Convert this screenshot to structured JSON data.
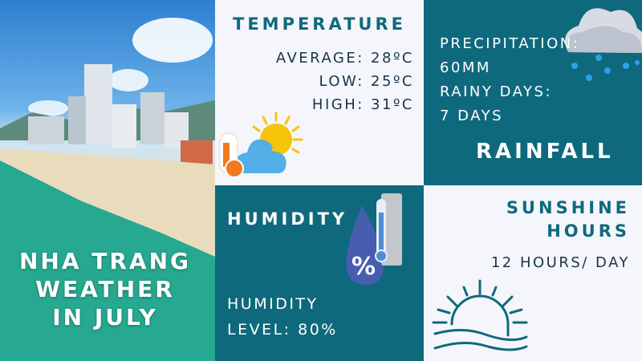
{
  "title": [
    "NHA TRANG",
    "WEATHER",
    "IN JULY"
  ],
  "temperature": {
    "heading": "TEMPERATURE",
    "lines": [
      "AVERAGE: 28ºC",
      "LOW: 25ºC",
      "HIGH: 31ºC"
    ]
  },
  "rainfall": {
    "heading": "RAINFALL",
    "lines": [
      "PRECIPITATION:",
      "60MM",
      "RAINY DAYS:",
      "7 DAYS"
    ]
  },
  "humidity": {
    "heading": "HUMIDITY",
    "lines": [
      "HUMIDITY",
      "LEVEL: 80%"
    ],
    "icon_text": "%"
  },
  "sunshine": {
    "heading": [
      "SUNSHINE",
      "HOURS"
    ],
    "value": "12 HOURS/ DAY"
  },
  "colors": {
    "teal": "#0f697d",
    "light": "#f5f6fb"
  }
}
